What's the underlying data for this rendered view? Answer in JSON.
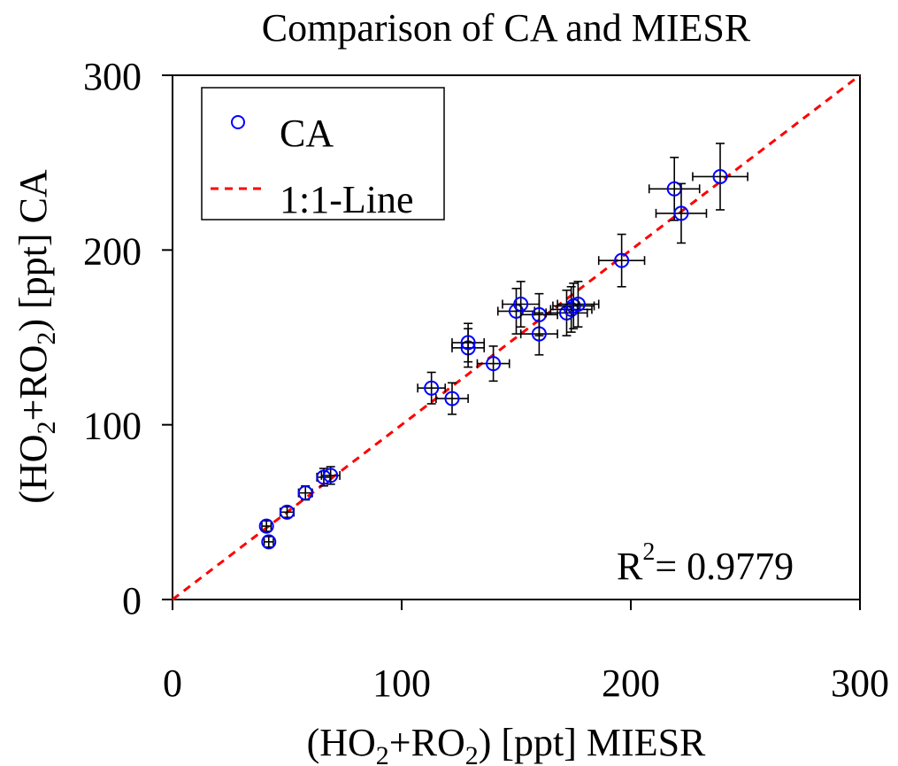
{
  "chart_data": {
    "type": "scatter",
    "title": "Comparison of CA and MIESR",
    "xlabel": {
      "pre": "(HO",
      "sub1": "2",
      "mid": "+RO",
      "sub2": "2",
      "post": ") [ppt] MIESR"
    },
    "ylabel": {
      "pre": "(HO",
      "sub1": "2",
      "mid": "+RO",
      "sub2": "2",
      "post": ") [ppt] CA"
    },
    "xlim": [
      0,
      300
    ],
    "ylim": [
      0,
      300
    ],
    "xticks": [
      "0",
      "100",
      "200",
      "300"
    ],
    "yticks": [
      "0",
      "100",
      "200",
      "300"
    ],
    "grid": false,
    "legend": {
      "placement": "top-left",
      "entries": [
        "CA",
        "1:1-Line"
      ]
    },
    "annotation": {
      "base": "R",
      "sup": "2",
      "rest": "= 0.9779"
    },
    "colors": {
      "points": "#0000ff",
      "reference_line": "#ff0000",
      "error_bars": "#000000"
    },
    "reference_line": {
      "name": "1:1-Line",
      "style": "dashed",
      "x": [
        0,
        300
      ],
      "y": [
        0,
        300
      ]
    },
    "series": [
      {
        "name": "CA",
        "marker": "open-circle",
        "points": [
          {
            "x": 41,
            "y": 42,
            "xerr": 2,
            "yerr": 3
          },
          {
            "x": 42,
            "y": 33,
            "xerr": 2,
            "yerr": 3
          },
          {
            "x": 50,
            "y": 50,
            "xerr": 3,
            "yerr": 3
          },
          {
            "x": 58,
            "y": 61,
            "xerr": 3,
            "yerr": 4
          },
          {
            "x": 66,
            "y": 70,
            "xerr": 3,
            "yerr": 5
          },
          {
            "x": 69,
            "y": 71,
            "xerr": 4,
            "yerr": 5
          },
          {
            "x": 113,
            "y": 121,
            "xerr": 6,
            "yerr": 9
          },
          {
            "x": 122,
            "y": 115,
            "xerr": 7,
            "yerr": 9
          },
          {
            "x": 129,
            "y": 144,
            "xerr": 7,
            "yerr": 11
          },
          {
            "x": 129,
            "y": 147,
            "xerr": 7,
            "yerr": 11
          },
          {
            "x": 140,
            "y": 135,
            "xerr": 7,
            "yerr": 10
          },
          {
            "x": 150,
            "y": 165,
            "xerr": 8,
            "yerr": 13
          },
          {
            "x": 152,
            "y": 169,
            "xerr": 8,
            "yerr": 13
          },
          {
            "x": 160,
            "y": 152,
            "xerr": 8,
            "yerr": 12
          },
          {
            "x": 160,
            "y": 163,
            "xerr": 8,
            "yerr": 12
          },
          {
            "x": 172,
            "y": 164,
            "xerr": 9,
            "yerr": 13
          },
          {
            "x": 174,
            "y": 166,
            "xerr": 9,
            "yerr": 13
          },
          {
            "x": 175,
            "y": 168,
            "xerr": 9,
            "yerr": 13
          },
          {
            "x": 177,
            "y": 169,
            "xerr": 9,
            "yerr": 13
          },
          {
            "x": 196,
            "y": 194,
            "xerr": 10,
            "yerr": 15
          },
          {
            "x": 219,
            "y": 235,
            "xerr": 11,
            "yerr": 18
          },
          {
            "x": 222,
            "y": 221,
            "xerr": 11,
            "yerr": 17
          },
          {
            "x": 239,
            "y": 242,
            "xerr": 12,
            "yerr": 19
          }
        ]
      }
    ]
  }
}
